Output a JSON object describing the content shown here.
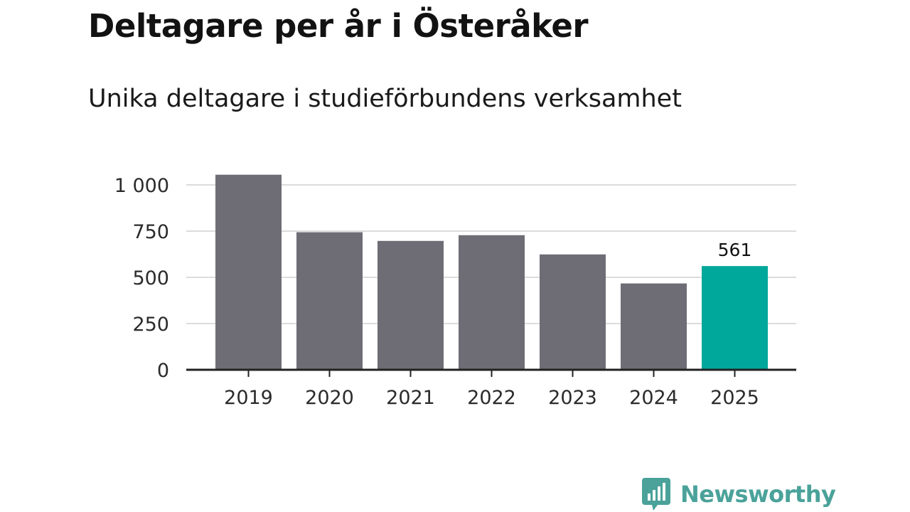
{
  "chart_data": {
    "type": "bar",
    "title": "Deltagare per år i Österåker",
    "subtitle": "Unika deltagare i studieförbundens verksamhet",
    "categories": [
      "2019",
      "2020",
      "2021",
      "2022",
      "2023",
      "2024",
      "2025"
    ],
    "values": [
      1055,
      744,
      697,
      728,
      624,
      467,
      561
    ],
    "highlight_index": 6,
    "highlight_label": "561",
    "xlabel": "",
    "ylabel": "",
    "ylim": [
      0,
      1000
    ],
    "yticks": [
      0,
      250,
      500,
      750,
      1000
    ],
    "ytick_labels": [
      "0",
      "250",
      "500",
      "750",
      "1 000"
    ],
    "grid": true,
    "colors": {
      "bar": "#6e6c74",
      "highlight": "#00a79b",
      "grid": "#dcdcdc",
      "axis": "#222222"
    }
  },
  "branding": {
    "name": "Newsworthy",
    "color": "#4aa29a",
    "icon": "bar-chart-speech-bubble-icon"
  }
}
